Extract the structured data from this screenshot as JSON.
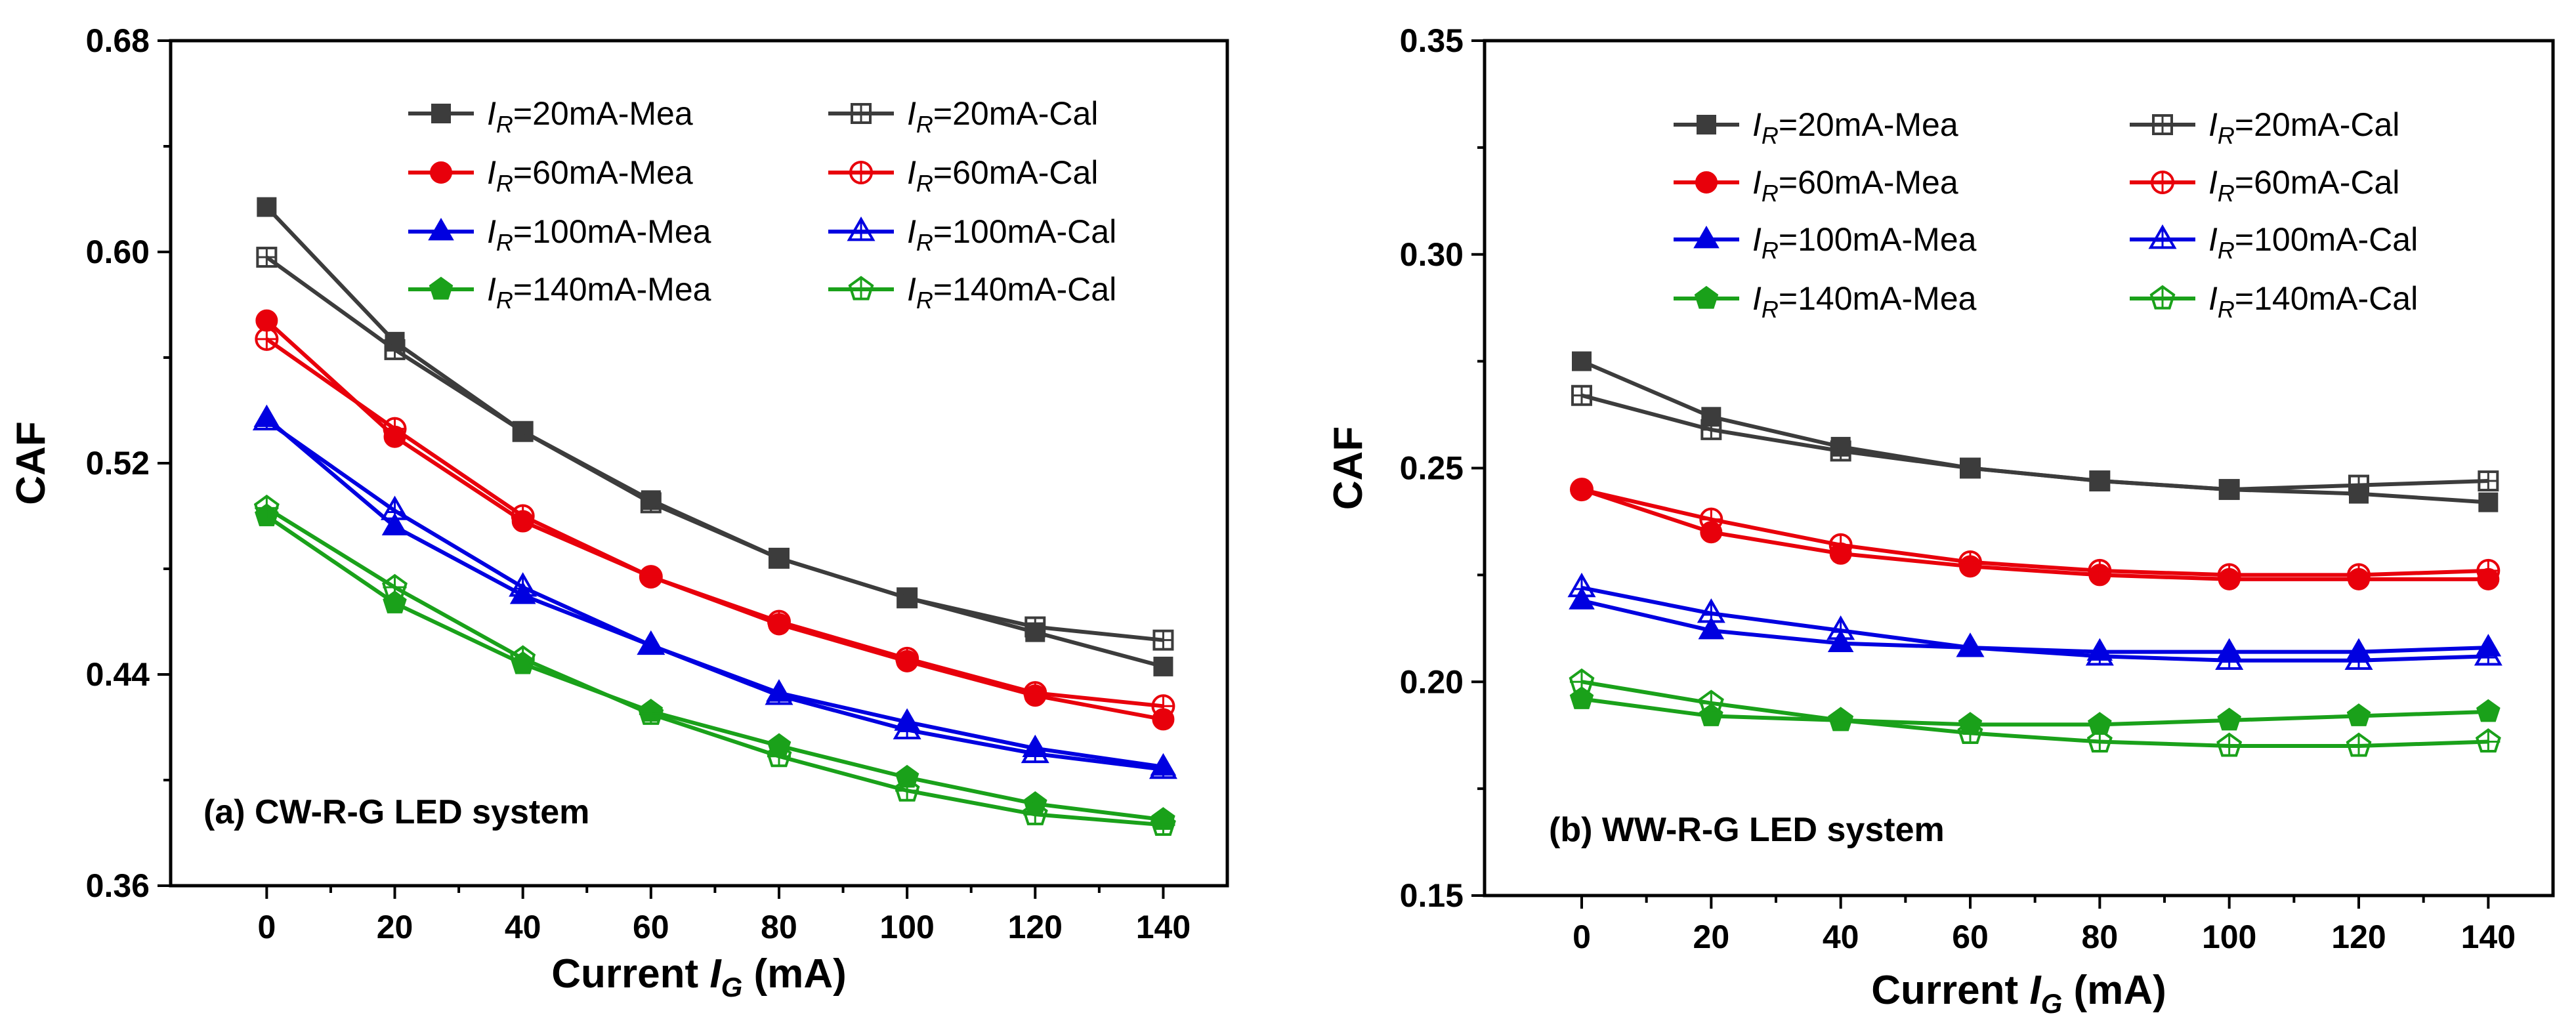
{
  "chart_data": [
    {
      "type": "line",
      "title": "(a) CW-R-G LED system",
      "xlabel": "Current IG (mA)",
      "xlabel_prefix": "Current ",
      "xlabel_var": "I",
      "xlabel_sub": "G",
      "xlabel_suffix": " (mA)",
      "ylabel": "CAF",
      "x": [
        0,
        20,
        40,
        60,
        80,
        100,
        120,
        140
      ],
      "xlim": [
        -15,
        150
      ],
      "ylim": [
        0.36,
        0.68
      ],
      "xticks": [
        0,
        20,
        40,
        60,
        80,
        100,
        120,
        140
      ],
      "xtick_labels": [
        "0",
        "20",
        "40",
        "60",
        "80",
        "100",
        "120",
        "140"
      ],
      "yticks": [
        0.36,
        0.44,
        0.52,
        0.6,
        0.68
      ],
      "ytick_labels": [
        "0.36",
        "0.44",
        "0.52",
        "0.60",
        "0.68"
      ],
      "legend_position": "top-right",
      "series": [
        {
          "name": "IR=20mA-Mea",
          "legend": "=20mA-Mea",
          "color": "#3c3c3c",
          "marker": "square-filled",
          "values": [
            0.617,
            0.566,
            0.532,
            0.506,
            0.484,
            0.469,
            0.456,
            0.443
          ]
        },
        {
          "name": "IR=20mA-Cal",
          "legend": "=20mA-Cal",
          "color": "#3c3c3c",
          "marker": "square-open",
          "values": [
            0.598,
            0.563,
            0.532,
            0.505,
            0.484,
            0.469,
            0.458,
            0.453
          ]
        },
        {
          "name": "IR=60mA-Mea",
          "legend": "=60mA-Mea",
          "color": "#e8000b",
          "marker": "circle-filled",
          "values": [
            0.574,
            0.53,
            0.498,
            0.477,
            0.459,
            0.445,
            0.432,
            0.423
          ]
        },
        {
          "name": "IR=60mA-Cal",
          "legend": "=60mA-Cal",
          "color": "#e8000b",
          "marker": "circle-open",
          "values": [
            0.567,
            0.533,
            0.5,
            0.477,
            0.46,
            0.446,
            0.433,
            0.428
          ]
        },
        {
          "name": "IR=100mA-Mea",
          "legend": "=100mA-Mea",
          "color": "#0000e0",
          "marker": "triangle-filled",
          "values": [
            0.537,
            0.496,
            0.47,
            0.451,
            0.433,
            0.422,
            0.412,
            0.405
          ]
        },
        {
          "name": "IR=100mA-Cal",
          "legend": "=100mA-Cal",
          "color": "#0000e0",
          "marker": "triangle-open",
          "values": [
            0.536,
            0.502,
            0.473,
            0.451,
            0.432,
            0.419,
            0.41,
            0.404
          ]
        },
        {
          "name": "IR=140mA-Mea",
          "legend": "=140mA-Mea",
          "color": "#1aa11a",
          "marker": "pentagon-filled",
          "values": [
            0.5,
            0.467,
            0.444,
            0.426,
            0.413,
            0.401,
            0.391,
            0.385
          ]
        },
        {
          "name": "IR=140mA-Cal",
          "legend": "=140mA-Cal",
          "color": "#1aa11a",
          "marker": "pentagon-open",
          "values": [
            0.503,
            0.473,
            0.446,
            0.425,
            0.409,
            0.396,
            0.387,
            0.383
          ]
        }
      ]
    },
    {
      "type": "line",
      "title": "(b) WW-R-G LED system",
      "xlabel": "Current IG (mA)",
      "xlabel_prefix": "Current ",
      "xlabel_var": "I",
      "xlabel_sub": "G",
      "xlabel_suffix": " (mA)",
      "ylabel": "CAF",
      "x": [
        0,
        20,
        40,
        60,
        80,
        100,
        120,
        140
      ],
      "xlim": [
        -15,
        150
      ],
      "ylim": [
        0.15,
        0.35
      ],
      "xticks": [
        0,
        20,
        40,
        60,
        80,
        100,
        120,
        140
      ],
      "xtick_labels": [
        "0",
        "20",
        "40",
        "60",
        "80",
        "100",
        "120",
        "140"
      ],
      "yticks": [
        0.15,
        0.2,
        0.25,
        0.3,
        0.35
      ],
      "ytick_labels": [
        "0.15",
        "0.20",
        "0.25",
        "0.30",
        "0.35"
      ],
      "legend_position": "top-right",
      "series": [
        {
          "name": "IR=20mA-Mea",
          "legend": "=20mA-Mea",
          "color": "#3c3c3c",
          "marker": "square-filled",
          "values": [
            0.275,
            0.262,
            0.255,
            0.25,
            0.247,
            0.245,
            0.244,
            0.242
          ]
        },
        {
          "name": "IR=20mA-Cal",
          "legend": "=20mA-Cal",
          "color": "#3c3c3c",
          "marker": "square-open",
          "values": [
            0.267,
            0.259,
            0.254,
            0.25,
            0.247,
            0.245,
            0.246,
            0.247
          ]
        },
        {
          "name": "IR=60mA-Mea",
          "legend": "=60mA-Mea",
          "color": "#e8000b",
          "marker": "circle-filled",
          "values": [
            0.245,
            0.235,
            0.23,
            0.227,
            0.225,
            0.224,
            0.224,
            0.224
          ]
        },
        {
          "name": "IR=60mA-Cal",
          "legend": "=60mA-Cal",
          "color": "#e8000b",
          "marker": "circle-open",
          "values": [
            0.245,
            0.238,
            0.232,
            0.228,
            0.226,
            0.225,
            0.225,
            0.226
          ]
        },
        {
          "name": "IR=100mA-Mea",
          "legend": "=100mA-Mea",
          "color": "#0000e0",
          "marker": "triangle-filled",
          "values": [
            0.219,
            0.212,
            0.209,
            0.208,
            0.207,
            0.207,
            0.207,
            0.208
          ]
        },
        {
          "name": "IR=100mA-Cal",
          "legend": "=100mA-Cal",
          "color": "#0000e0",
          "marker": "triangle-open",
          "values": [
            0.222,
            0.216,
            0.212,
            0.208,
            0.206,
            0.205,
            0.205,
            0.206
          ]
        },
        {
          "name": "IR=140mA-Mea",
          "legend": "=140mA-Mea",
          "color": "#1aa11a",
          "marker": "pentagon-filled",
          "values": [
            0.196,
            0.192,
            0.191,
            0.19,
            0.19,
            0.191,
            0.192,
            0.193
          ]
        },
        {
          "name": "IR=140mA-Cal",
          "legend": "=140mA-Cal",
          "color": "#1aa11a",
          "marker": "pentagon-open",
          "values": [
            0.2,
            0.195,
            0.191,
            0.188,
            0.186,
            0.185,
            0.185,
            0.186
          ]
        }
      ]
    }
  ],
  "legend_var": {
    "letter": "I",
    "sub": "R"
  }
}
